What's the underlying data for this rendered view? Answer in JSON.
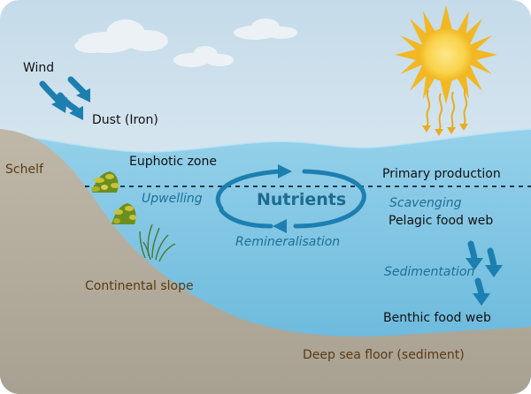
{
  "labels": {
    "wind": "Wind",
    "dust": "Dust (Iron)",
    "schelf": "Schelf",
    "euphotic": "Euphotic zone",
    "primary_production": "Primary production",
    "upwelling": "Upwelling",
    "nutrients": "Nutrients",
    "scavenging": "Scavenging",
    "pelagic": "Pelagic food web",
    "remineralisation": "Remineralisation",
    "sedimentation": "Sedimentation",
    "continental_slope": "Continental slope",
    "benthic": "Benthic food web",
    "deep_sea": "Deep sea floor (sediment)"
  },
  "colors": {
    "sky_top": "#c5dbe9",
    "sky_bottom": "#edf4f8",
    "water_top": "#8fcde8",
    "water_bottom": "#5fb3d9",
    "sediment": "#b5ae9e",
    "arrow_blue": "#1c7fb0",
    "sun": "#f7c531",
    "sun_core": "#fbe37b",
    "sun_ray": "#e7ad1f"
  }
}
